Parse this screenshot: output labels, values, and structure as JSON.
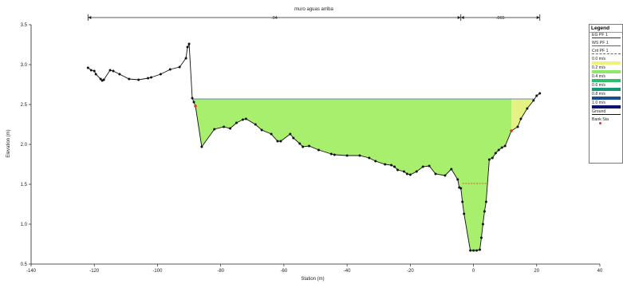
{
  "chart_data": {
    "type": "area",
    "title": "",
    "xlabel": "Station (m)",
    "ylabel": "Elevation (m)",
    "xlim": [
      -140,
      40
    ],
    "ylim": [
      0.5,
      3.5
    ],
    "x_ticks": [
      -140,
      -120,
      -100,
      -80,
      -60,
      -40,
      -20,
      0,
      20,
      40
    ],
    "x_tick_labels": [
      "-140",
      "-120",
      "-100",
      "-80",
      "-60",
      "-40",
      "-20",
      "0",
      "20",
      "40"
    ],
    "y_ticks": [
      0.5,
      1.0,
      1.5,
      2.0,
      2.5,
      3.0,
      3.5
    ],
    "y_tick_labels": [
      "0.5",
      "1.0",
      "1.5",
      "2.0",
      "2.5",
      "3.0",
      "3.5"
    ],
    "annotation": {
      "label": "muro aguas arriba",
      "start": -122,
      "divider": -4,
      "end": 21,
      "left_value": ".04",
      "right_value": ".065"
    },
    "ground": {
      "x": [
        -122,
        -121,
        -120,
        -119.5,
        -118,
        -117.5,
        -117,
        -115,
        -114,
        -112,
        -109,
        -106,
        -103,
        -102,
        -99,
        -96,
        -93,
        -91,
        -90.5,
        -90,
        -89,
        -88.5,
        -88,
        -86,
        -82,
        -79,
        -77,
        -75,
        -73,
        -72,
        -69,
        -67,
        -64,
        -62,
        -61,
        -58,
        -57,
        -55,
        -54,
        -52,
        -49,
        -45,
        -44,
        -40,
        -36,
        -33,
        -31,
        -28,
        -26,
        -25,
        -24,
        -22,
        -21,
        -20,
        -18,
        -16,
        -14,
        -12,
        -9,
        -7,
        -5,
        -4.5,
        -4,
        -3.5,
        -3,
        -1,
        0,
        1,
        2,
        2.5,
        3,
        3.5,
        4,
        5,
        6,
        7,
        8,
        9,
        10,
        12,
        14,
        15,
        17,
        19,
        20,
        21
      ],
      "y": [
        2.96,
        2.93,
        2.92,
        2.88,
        2.82,
        2.8,
        2.81,
        2.93,
        2.92,
        2.88,
        2.82,
        2.81,
        2.83,
        2.84,
        2.88,
        2.94,
        2.97,
        3.08,
        3.22,
        3.26,
        2.58,
        2.53,
        2.48,
        1.97,
        2.19,
        2.22,
        2.2,
        2.27,
        2.31,
        2.32,
        2.25,
        2.18,
        2.13,
        2.04,
        2.04,
        2.13,
        2.08,
        2.01,
        1.97,
        1.98,
        1.93,
        1.88,
        1.87,
        1.86,
        1.86,
        1.83,
        1.79,
        1.75,
        1.74,
        1.72,
        1.68,
        1.66,
        1.63,
        1.62,
        1.66,
        1.72,
        1.73,
        1.63,
        1.61,
        1.69,
        1.56,
        1.46,
        1.45,
        1.28,
        1.13,
        0.67,
        0.67,
        0.67,
        0.68,
        0.83,
        1.0,
        1.16,
        1.28,
        1.81,
        1.83,
        1.89,
        1.93,
        1.96,
        1.98,
        2.17,
        2.22,
        2.32,
        2.45,
        2.55,
        2.61,
        2.64
      ]
    },
    "bank_stations": [
      -88,
      12
    ],
    "water_surface": 2.57,
    "critical_segment": {
      "x": [
        -3.5,
        4
      ],
      "y": 1.51
    },
    "colors": {
      "flow_fill": "#a8ef6e",
      "overbank_fill": "#e5f283",
      "ground": "#111111",
      "water_line": "#3b62c8",
      "critical": "#e4332a",
      "bank": "#e4332a"
    },
    "legend": {
      "title": "Legend",
      "entries": [
        {
          "label": "EG PF 1",
          "color": "#1f2a9c",
          "kind": "line"
        },
        {
          "label": "WS PF 1",
          "color": "#3b62c8",
          "kind": "line"
        },
        {
          "label": "Crit PF 1",
          "color": "#e4332a",
          "kind": "dash"
        },
        {
          "label": "0.0 m/s",
          "color": "#eef27c",
          "kind": "swatch"
        },
        {
          "label": "0.2 m/s",
          "color": "#8ee86a",
          "kind": "swatch"
        },
        {
          "label": "0.4 m/s",
          "color": "#2fbf6a",
          "kind": "swatch"
        },
        {
          "label": "0.6 m/s",
          "color": "#17967a",
          "kind": "swatch"
        },
        {
          "label": "0.8 m/s",
          "color": "#1a4f8e",
          "kind": "swatch"
        },
        {
          "label": "1.0 m/s",
          "color": "#0b1570",
          "kind": "swatch"
        },
        {
          "label": "Ground",
          "color": "#111111",
          "kind": "ground"
        },
        {
          "label": "Bank Sta",
          "color": "#e4332a",
          "kind": "dot"
        }
      ]
    }
  }
}
